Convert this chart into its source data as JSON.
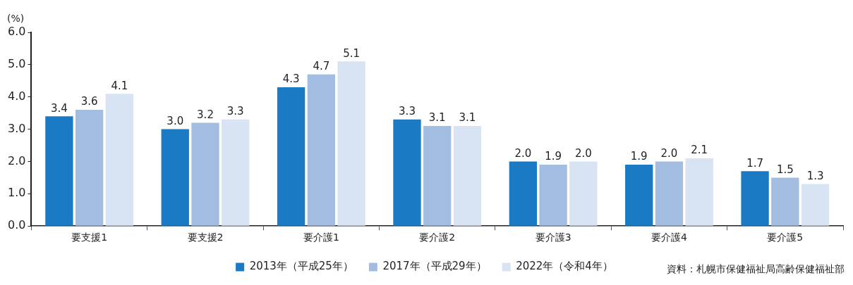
{
  "chart_data": {
    "type": "bar",
    "ylabel": "(%)",
    "categories": [
      "要支援1",
      "要支援2",
      "要介護1",
      "要介護2",
      "要介護3",
      "要介護4",
      "要介護5"
    ],
    "series": [
      {
        "name": "2013年（平成25年）",
        "color": "#1a7bc4",
        "values": [
          3.4,
          3.0,
          4.3,
          3.3,
          2.0,
          1.9,
          1.7
        ],
        "value_labels": [
          "3.4",
          "3.0",
          "4.3",
          "3.3",
          "2.0",
          "1.9",
          "1.7"
        ]
      },
      {
        "name": "2017年（平成29年）",
        "color": "#a3bde1",
        "values": [
          3.6,
          3.2,
          4.7,
          3.1,
          1.9,
          2.0,
          1.5
        ],
        "value_labels": [
          "3.6",
          "3.2",
          "4.7",
          "3.1",
          "1.9",
          "2.0",
          "1.5"
        ]
      },
      {
        "name": "2022年（令和4年）",
        "color": "#d8e3f3",
        "values": [
          4.1,
          3.3,
          5.1,
          3.1,
          2.0,
          2.1,
          1.3
        ],
        "value_labels": [
          "4.1",
          "3.3",
          "5.1",
          "3.1",
          "2.0",
          "2.1",
          "1.3"
        ]
      }
    ],
    "ylim": [
      0,
      6
    ],
    "yticks": [
      {
        "value": 0,
        "label": "0.0"
      },
      {
        "value": 1,
        "label": "1.0"
      },
      {
        "value": 2,
        "label": "2.0"
      },
      {
        "value": 3,
        "label": "3.0"
      },
      {
        "value": 4,
        "label": "4.0"
      },
      {
        "value": 5,
        "label": "5.0"
      },
      {
        "value": 6,
        "label": "6.0"
      }
    ],
    "legend": "bottom",
    "annotations": [
      "資料：札幌市保健福祉局高齢保健福祉部"
    ]
  }
}
